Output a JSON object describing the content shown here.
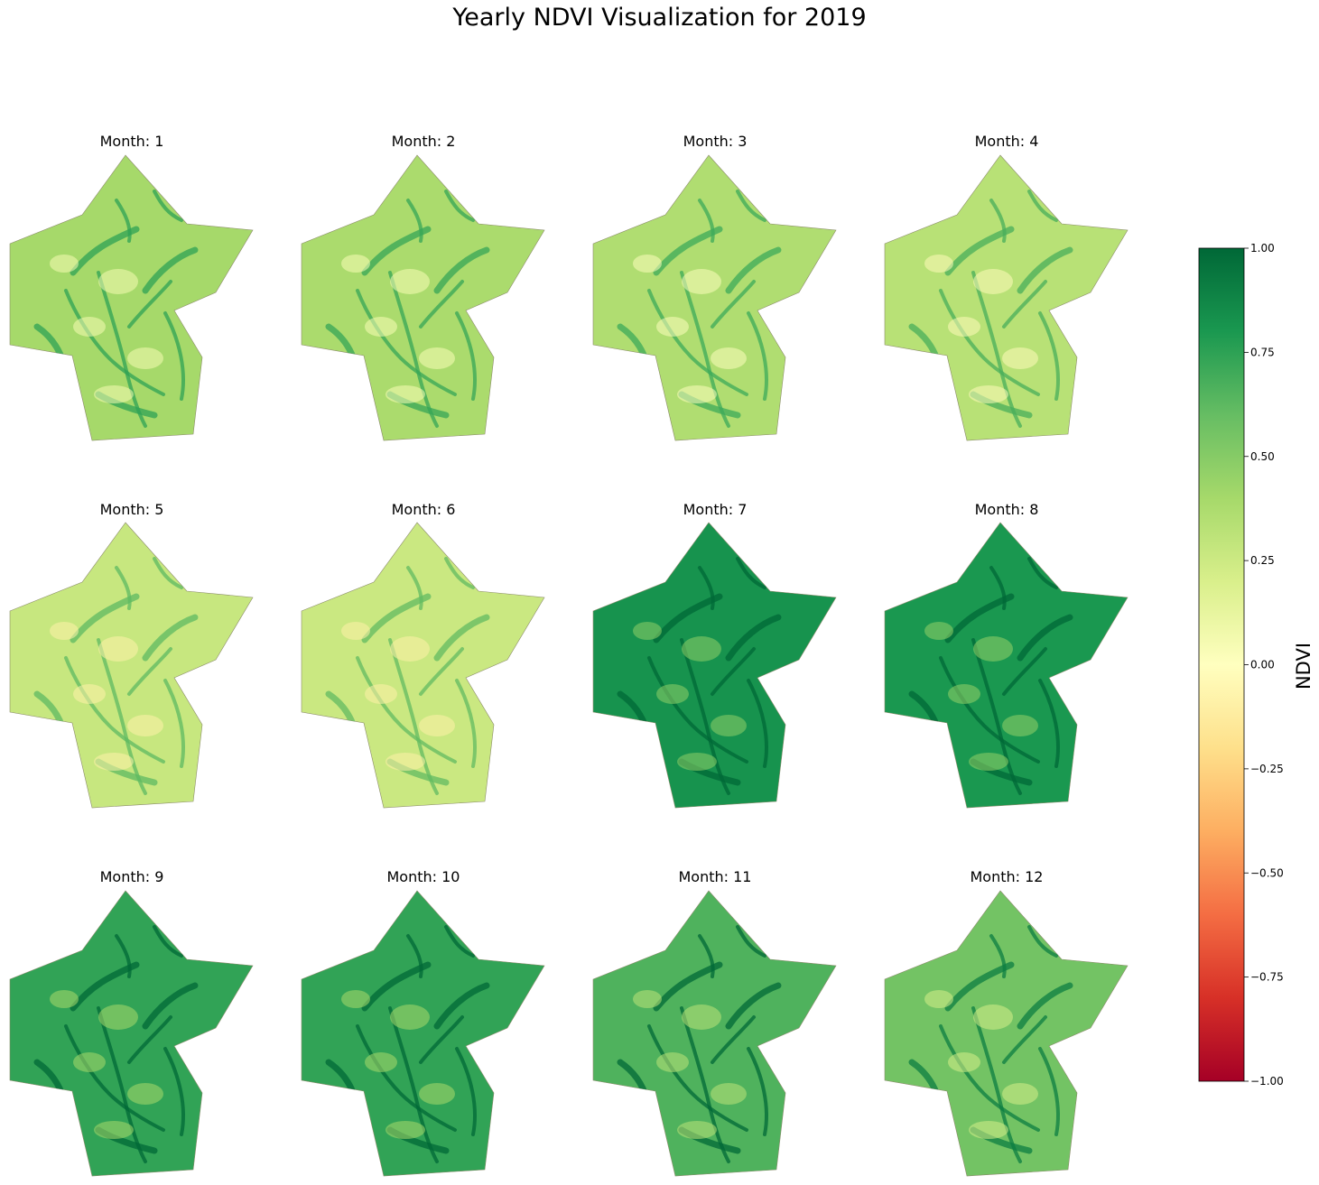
{
  "chart_data": {
    "type": "heatmap",
    "title": "Yearly NDVI Visualization for 2019",
    "colormap": "RdYlGn",
    "panels": [
      {
        "title": "Month: 1",
        "month": 1,
        "mean_ndvi": 0.4
      },
      {
        "title": "Month: 2",
        "month": 2,
        "mean_ndvi": 0.38
      },
      {
        "title": "Month: 3",
        "month": 3,
        "mean_ndvi": 0.36
      },
      {
        "title": "Month: 4",
        "month": 4,
        "mean_ndvi": 0.33
      },
      {
        "title": "Month: 5",
        "month": 5,
        "mean_ndvi": 0.27
      },
      {
        "title": "Month: 6",
        "month": 6,
        "mean_ndvi": 0.26
      },
      {
        "title": "Month: 7",
        "month": 7,
        "mean_ndvi": 0.82
      },
      {
        "title": "Month: 8",
        "month": 8,
        "mean_ndvi": 0.8
      },
      {
        "title": "Month: 9",
        "month": 9,
        "mean_ndvi": 0.74
      },
      {
        "title": "Month: 10",
        "month": 10,
        "mean_ndvi": 0.74
      },
      {
        "title": "Month: 11",
        "month": 11,
        "mean_ndvi": 0.66
      },
      {
        "title": "Month: 12",
        "month": 12,
        "mean_ndvi": 0.56
      }
    ],
    "colorbar": {
      "label": "NDVI",
      "range": [
        -1.0,
        1.0
      ],
      "ticks": [
        1.0,
        0.75,
        0.5,
        0.25,
        0.0,
        -0.25,
        -0.5,
        -0.75,
        -1.0
      ],
      "tick_labels": [
        "1.00",
        "0.75",
        "0.50",
        "0.25",
        "0.00",
        "−0.25",
        "−0.50",
        "−0.75",
        "−1.00"
      ],
      "colors": [
        "#a50026",
        "#d73027",
        "#f46d43",
        "#fdae61",
        "#fee08b",
        "#ffffbf",
        "#d9ef8b",
        "#a6d96a",
        "#66bd63",
        "#1a9850",
        "#006837"
      ]
    },
    "grid": false,
    "axes": "off"
  }
}
